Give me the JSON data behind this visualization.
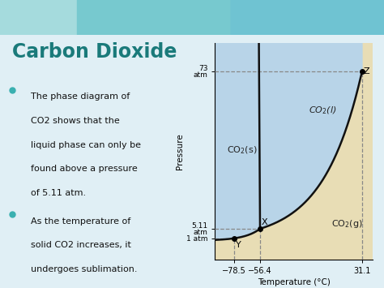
{
  "title": "Carbon Dioxide",
  "bullet1_line1": "The phase diagram of",
  "bullet1_line2": "CO2 shows that the",
  "bullet1_line3": "liquid phase can only be",
  "bullet1_line4": "found above a pressure",
  "bullet1_line5": "of 5.11 atm.",
  "bullet2_line1": "As the temperature of",
  "bullet2_line2": "solid CO2 increases, it",
  "bullet2_line3": "undergoes sublimation.",
  "xlabel": "Temperature (°C)",
  "ylabel": "Pressure",
  "xmin": -95,
  "xmax": 40,
  "ymin": -8,
  "ymax": 85,
  "xtick_vals": [
    -78.5,
    -56.4,
    31.1
  ],
  "xtick_labels": [
    "−78.5",
    "−56.4",
    "31.1"
  ],
  "ytick_vals": [
    1,
    5.11,
    73
  ],
  "ytick_labels": [
    "1 atm",
    "5.11\natm",
    "73\natm"
  ],
  "T_triple": -56.4,
  "P_triple": 5.11,
  "T_crit": 31.1,
  "P_crit": 73.0,
  "T_sub1atm": -78.5,
  "P_1atm": 1.0,
  "solid_color": "#b8d4e8",
  "gas_color": "#e8ddb5",
  "title_color": "#1a7a7a",
  "text_color": "#111111",
  "bullet_color": "#3ab0b0",
  "slide_bg": "#e0eff5",
  "wave1_color": "#7ecece",
  "wave2_color": "#5bbccc",
  "diagram_bg": "#f0ece0",
  "dashed_color": "#888888",
  "curve_color": "#111111"
}
